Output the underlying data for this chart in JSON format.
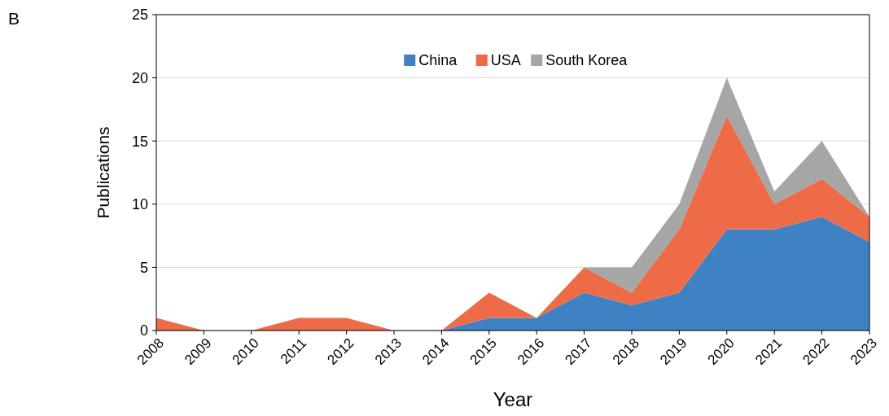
{
  "chart_data": {
    "type": "area",
    "stacked": true,
    "xlabel": "Year",
    "ylabel": "Publications",
    "annotations": [
      "B"
    ],
    "categories": [
      "2008",
      "2009",
      "2010",
      "2011",
      "2012",
      "2013",
      "2014",
      "2015",
      "2016",
      "2017",
      "2018",
      "2019",
      "2020",
      "2021",
      "2022",
      "2023"
    ],
    "series": [
      {
        "name": "China",
        "color": "#3f82c4",
        "values": [
          0,
          0,
          0,
          0,
          0,
          0,
          0,
          1,
          1,
          3,
          2,
          3,
          8,
          8,
          9,
          7
        ]
      },
      {
        "name": "USA",
        "color": "#ee6b48",
        "values": [
          1,
          0,
          0,
          1,
          1,
          0,
          0,
          2,
          0,
          2,
          1,
          5,
          9,
          2,
          3,
          2
        ]
      },
      {
        "name": "South Korea",
        "color": "#a6a6a6",
        "values": [
          0,
          0,
          0,
          0,
          0,
          0,
          0,
          0,
          0,
          0,
          2,
          2,
          3,
          1,
          3,
          0
        ]
      }
    ],
    "ylim": [
      0,
      25
    ],
    "yticks": [
      0,
      5,
      10,
      15,
      20,
      25
    ],
    "grid": "y",
    "legend": "top"
  }
}
